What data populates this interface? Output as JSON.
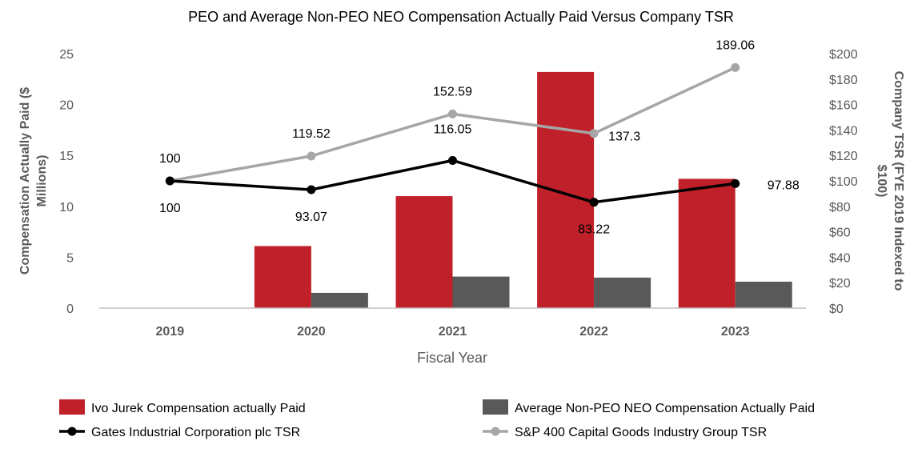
{
  "chart_data": {
    "type": "bar",
    "title": "PEO and Average Non-PEO NEO Compensation Actually Paid Versus Company TSR",
    "xlabel": "Fiscal Year",
    "ylabel": "Compensation Actually Paid ($ Millions)",
    "y2label": "Company TSR (FYE 2019 Indexed to $100)",
    "ylim": [
      0,
      25
    ],
    "y2lim": [
      0,
      200
    ],
    "yticks": [
      "0",
      "5",
      "10",
      "15",
      "20",
      "25"
    ],
    "y2ticks": [
      "$0",
      "$20",
      "$40",
      "$60",
      "$80",
      "$100",
      "$120",
      "$140",
      "$160",
      "$180",
      "$200"
    ],
    "categories": [
      "2019",
      "2020",
      "2021",
      "2022",
      "2023"
    ],
    "series": [
      {
        "name": "Ivo Jurek Compensation actually Paid",
        "kind": "bar",
        "axis": "left",
        "color": "#c0202a",
        "values": [
          0,
          6.1,
          11.0,
          23.2,
          12.7
        ]
      },
      {
        "name": "Average Non-PEO NEO Compensation Actually Paid",
        "kind": "bar",
        "axis": "left",
        "color": "#595959",
        "values": [
          0,
          1.5,
          3.1,
          3.0,
          2.6
        ]
      },
      {
        "name": "Gates Industrial Corporation plc TSR",
        "kind": "line",
        "axis": "right",
        "color": "#000000",
        "values": [
          100,
          93.07,
          116.05,
          83.22,
          97.88
        ],
        "labels": [
          "100",
          "93.07",
          "116.05",
          "83.22",
          "97.88"
        ]
      },
      {
        "name": "S&P 400 Capital Goods Industry Group TSR",
        "kind": "line",
        "axis": "right",
        "color": "#a6a6a6",
        "values": [
          100,
          119.52,
          152.59,
          137.3,
          189.06
        ],
        "labels": [
          "100",
          "119.52",
          "152.59",
          "137.3",
          "189.06"
        ]
      }
    ],
    "legend": [
      {
        "label": "Ivo Jurek Compensation actually Paid",
        "kind": "bar",
        "color": "#c0202a"
      },
      {
        "label": "Average Non-PEO NEO Compensation Actually Paid",
        "kind": "bar",
        "color": "#595959"
      },
      {
        "label": "Gates Industrial Corporation plc TSR",
        "kind": "line",
        "color": "#000000"
      },
      {
        "label": "S&P 400 Capital Goods Industry Group TSR",
        "kind": "line",
        "color": "#a6a6a6"
      }
    ],
    "legend_position": "bottom",
    "grid": false
  }
}
